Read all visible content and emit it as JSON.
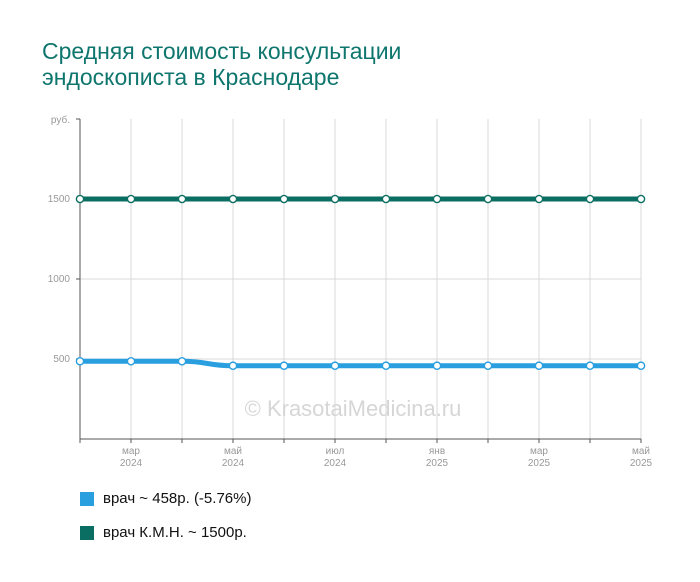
{
  "chart_data": {
    "type": "line",
    "title": "Средняя стоимость консультации эндоскописта в Краснодаре",
    "title_lines": [
      "Средняя стоимость консультации",
      "эндоскописта в Краснодаре"
    ],
    "ylabel": "руб.",
    "ylim": [
      0,
      2000
    ],
    "yticks": [
      500,
      1000,
      1500
    ],
    "grid": true,
    "watermark": "© KrasotaiMedicina.ru",
    "x_labels": [
      {
        "index": 1,
        "month": "мар",
        "year": "2024"
      },
      {
        "index": 3,
        "month": "май",
        "year": "2024"
      },
      {
        "index": 5,
        "month": "июл",
        "year": "2024"
      },
      {
        "index": 7,
        "month": "янв",
        "year": "2025"
      },
      {
        "index": 9,
        "month": "мар",
        "year": "2025"
      },
      {
        "index": 11,
        "month": "май",
        "year": "2025"
      }
    ],
    "series": [
      {
        "name": "врач К.М.Н.",
        "color": "#0b6e62",
        "values": [
          1500,
          1500,
          1500,
          1500,
          1500,
          1500,
          1500,
          1500,
          1500,
          1500,
          1500,
          1500
        ]
      },
      {
        "name": "врач",
        "color": "#2a9fe0",
        "values": [
          486,
          486,
          486,
          458,
          458,
          458,
          458,
          458,
          458,
          458,
          458,
          458
        ]
      }
    ],
    "legend": [
      {
        "label": "врач ~ 458р. (-5.76%)",
        "color": "#2a9fe0"
      },
      {
        "label": "врач К.М.Н. ~ 1500р.",
        "color": "#0b6e62"
      }
    ],
    "legend_position": "bottom-left"
  }
}
